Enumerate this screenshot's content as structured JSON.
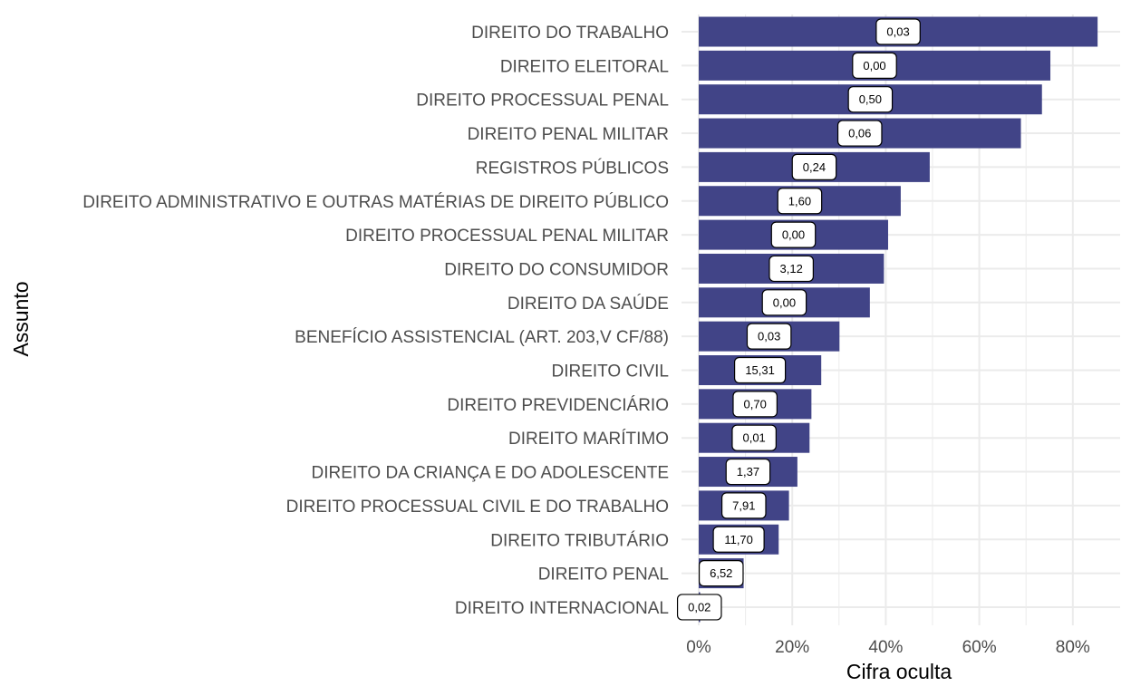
{
  "chart_data": {
    "type": "bar",
    "orientation": "horizontal",
    "xlabel": "Cifra oculta",
    "ylabel": "Assunto",
    "xlim": [
      0,
      0.88
    ],
    "xticks": [
      0,
      0.2,
      0.4,
      0.6,
      0.8
    ],
    "xtick_labels": [
      "0%",
      "20%",
      "40%",
      "60%",
      "80%"
    ],
    "grid": true,
    "bar_color": "#414487",
    "categories": [
      "DIREITO DO TRABALHO",
      "DIREITO ELEITORAL",
      "DIREITO PROCESSUAL PENAL",
      "DIREITO PENAL MILITAR",
      "REGISTROS PÚBLICOS",
      "DIREITO ADMINISTRATIVO E OUTRAS MATÉRIAS DE DIREITO PÚBLICO",
      "DIREITO PROCESSUAL PENAL MILITAR",
      "DIREITO DO CONSUMIDOR",
      "DIREITO DA SAÚDE",
      "BENEFÍCIO ASSISTENCIAL (ART. 203,V CF/88)",
      "DIREITO CIVIL",
      "DIREITO PREVIDENCIÁRIO",
      "DIREITO MARÍTIMO",
      "DIREITO DA CRIANÇA E DO ADOLESCENTE",
      "DIREITO PROCESSUAL CIVIL E DO TRABALHO",
      "DIREITO TRIBUTÁRIO",
      "DIREITO PENAL",
      "DIREITO INTERNACIONAL"
    ],
    "values": [
      0.853,
      0.752,
      0.734,
      0.689,
      0.494,
      0.432,
      0.405,
      0.396,
      0.366,
      0.301,
      0.262,
      0.241,
      0.237,
      0.211,
      0.193,
      0.171,
      0.096,
      0.003
    ],
    "data_labels": [
      "0,03",
      "0,00",
      "0,50",
      "0,06",
      "0,24",
      "1,60",
      "0,00",
      "3,12",
      "0,00",
      "0,03",
      "15,31",
      "0,70",
      "0,01",
      "1,37",
      "7,91",
      "11,70",
      "6,52",
      "0,02"
    ]
  }
}
